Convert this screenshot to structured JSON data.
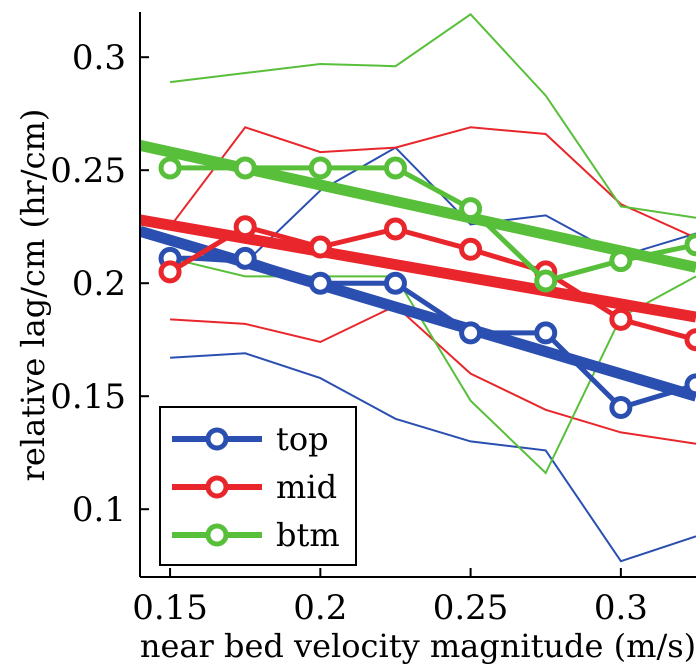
{
  "chart_data": {
    "type": "line",
    "title": "",
    "xlabel": "near bed velocity magnitude (m/s)",
    "ylabel": "relative lag/cm (hr/cm)",
    "xlim": [
      0.14,
      0.325
    ],
    "ylim": [
      0.07,
      0.32
    ],
    "xticks": [
      0.15,
      0.2,
      0.25,
      0.3
    ],
    "xtick_labels": [
      "0.15",
      "0.2",
      "0.25",
      "0.3"
    ],
    "yticks": [
      0.1,
      0.15,
      0.2,
      0.25,
      0.3
    ],
    "ytick_labels": [
      "0.1",
      "0.15",
      "0.2",
      "0.25",
      "0.3"
    ],
    "legend_position": "bottom-left",
    "x": [
      0.15,
      0.175,
      0.2,
      0.225,
      0.25,
      0.275,
      0.3,
      0.325
    ],
    "series": [
      {
        "name": "top",
        "color": "#2b4fb0",
        "values": [
          0.211,
          0.211,
          0.2,
          0.2,
          0.178,
          0.178,
          0.145,
          0.155
        ],
        "upper": [
          0.211,
          0.209,
          0.241,
          0.26,
          0.226,
          0.23,
          0.212,
          0.222
        ],
        "lower": [
          0.167,
          0.169,
          0.158,
          0.14,
          0.13,
          0.126,
          0.077,
          0.088
        ],
        "fit": [
          [
            0.14,
            0.223
          ],
          [
            0.325,
            0.15
          ]
        ]
      },
      {
        "name": "mid",
        "color": "#e8262b",
        "values": [
          0.205,
          0.225,
          0.216,
          0.224,
          0.215,
          0.205,
          0.184,
          0.175
        ],
        "upper": [
          0.225,
          0.269,
          0.258,
          0.26,
          0.269,
          0.266,
          0.235,
          0.22
        ],
        "lower": [
          0.184,
          0.182,
          0.174,
          0.19,
          0.16,
          0.144,
          0.134,
          0.129
        ],
        "fit": [
          [
            0.14,
            0.228
          ],
          [
            0.325,
            0.185
          ]
        ]
      },
      {
        "name": "btm",
        "color": "#58bf3a",
        "values": [
          0.251,
          0.251,
          0.251,
          0.251,
          0.233,
          0.201,
          0.21,
          0.217
        ],
        "upper": [
          0.289,
          0.293,
          0.297,
          0.296,
          0.319,
          0.283,
          0.234,
          0.229
        ],
        "lower": [
          0.211,
          0.203,
          0.203,
          0.203,
          0.148,
          0.116,
          0.185,
          0.203
        ],
        "fit": [
          [
            0.14,
            0.261
          ],
          [
            0.325,
            0.207
          ]
        ]
      }
    ]
  }
}
